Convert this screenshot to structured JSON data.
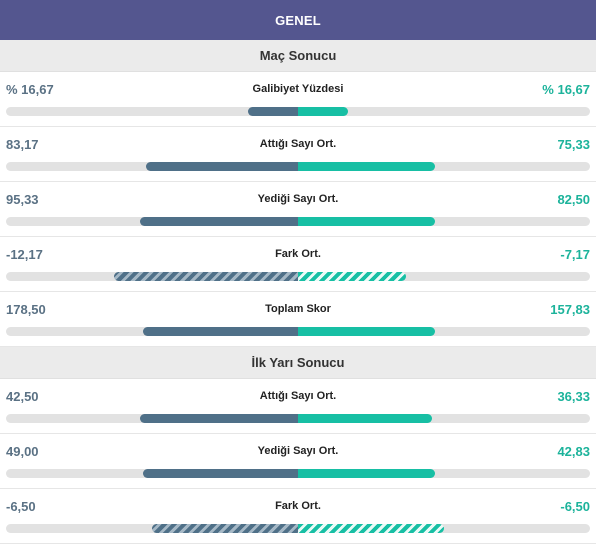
{
  "header": {
    "title": "GENEL"
  },
  "sections": [
    {
      "title": "Maç Sonucu",
      "rows": [
        {
          "label": "Galibiyet Yüzdesi",
          "left": "% 16,67",
          "right": "% 16,67",
          "left_fill": 0.17,
          "right_fill": 0.17,
          "striped": false
        },
        {
          "label": "Attığı Sayı Ort.",
          "left": "83,17",
          "right": "75,33",
          "left_fill": 0.52,
          "right_fill": 0.47,
          "striped": false
        },
        {
          "label": "Yediği Sayı Ort.",
          "left": "95,33",
          "right": "82,50",
          "left_fill": 0.54,
          "right_fill": 0.47,
          "striped": false
        },
        {
          "label": "Fark Ort.",
          "left": "-12,17",
          "right": "-7,17",
          "left_fill": 0.63,
          "right_fill": 0.37,
          "striped": true
        },
        {
          "label": "Toplam Skor",
          "left": "178,50",
          "right": "157,83",
          "left_fill": 0.53,
          "right_fill": 0.47,
          "striped": false
        }
      ]
    },
    {
      "title": "İlk Yarı Sonucu",
      "rows": [
        {
          "label": "Attığı Sayı Ort.",
          "left": "42,50",
          "right": "36,33",
          "left_fill": 0.54,
          "right_fill": 0.46,
          "striped": false
        },
        {
          "label": "Yediği Sayı Ort.",
          "left": "49,00",
          "right": "42,83",
          "left_fill": 0.53,
          "right_fill": 0.47,
          "striped": false
        },
        {
          "label": "Fark Ort.",
          "left": "-6,50",
          "right": "-6,50",
          "left_fill": 0.5,
          "right_fill": 0.5,
          "striped": true
        }
      ]
    }
  ],
  "colors": {
    "header_bg": "#54568f",
    "left": "#4f7088",
    "right": "#17bfa4",
    "track": "#e2e2e2"
  }
}
